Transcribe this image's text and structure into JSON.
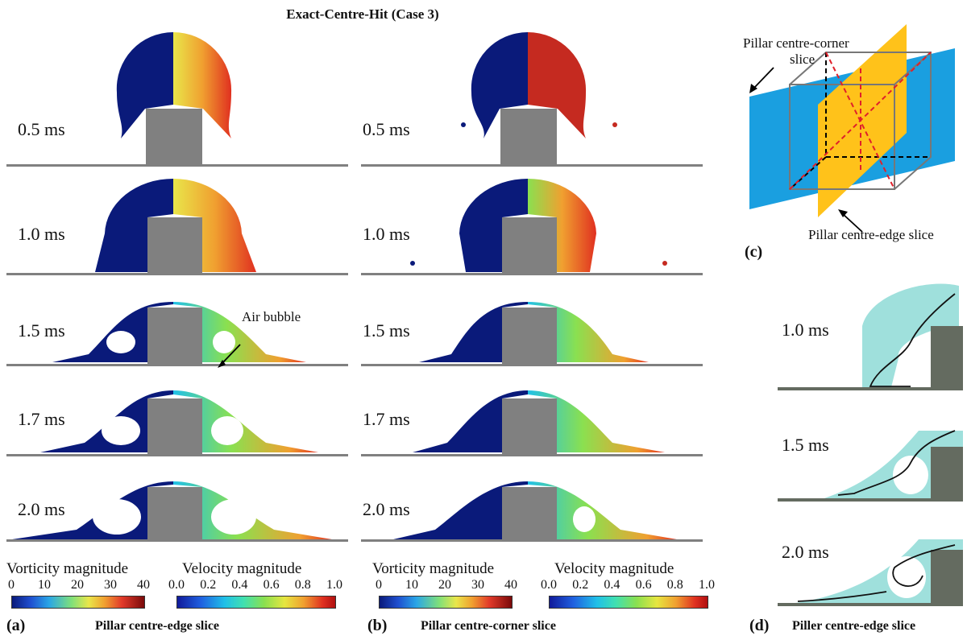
{
  "figure": {
    "title": "Exact-Centre-Hit (Case 3)",
    "panel_a": {
      "label": "(a)",
      "caption": "Pillar centre-edge slice",
      "time_labels": [
        "0.5 ms",
        "1.0 ms",
        "1.5 ms",
        "1.7 ms",
        "2.0 ms"
      ],
      "annotation": "Air bubble"
    },
    "panel_b": {
      "label": "(b)",
      "caption": "Pillar centre-corner slice",
      "time_labels": [
        "0.5 ms",
        "1.0 ms",
        "1.5 ms",
        "1.7 ms",
        "2.0 ms"
      ]
    },
    "panel_c": {
      "label": "(c)",
      "corner_slice_label_line1": "Pillar centre-corner",
      "corner_slice_label_line2": "slice",
      "edge_slice_label": "Pillar centre-edge slice"
    },
    "panel_d": {
      "label": "(d)",
      "caption": "Piller centre-edge slice",
      "time_labels": [
        "1.0 ms",
        "1.5 ms",
        "2.0 ms"
      ]
    },
    "legend_a": {
      "vorticity_title": "Vorticity magnitude",
      "vorticity_ticks": [
        "0",
        "10",
        "20",
        "30",
        "40"
      ],
      "velocity_title": "Velocity magnitude",
      "velocity_ticks": [
        "0.0",
        "0.2",
        "0.4",
        "0.6",
        "0.8",
        "1.0"
      ]
    },
    "legend_b": {
      "vorticity_title": "Vorticity magnitude",
      "vorticity_ticks": [
        "0",
        "10",
        "20",
        "30",
        "40"
      ],
      "velocity_title": "Velocity magnitude",
      "velocity_ticks": [
        "0.0",
        "0.2",
        "0.4",
        "0.6",
        "0.8",
        "1.0"
      ]
    },
    "colors": {
      "vorticity_low": "#0a1a7a",
      "velocity_high": "#e03020",
      "pillar": "#808080",
      "corner_slice": "#1a9fe0",
      "edge_slice": "#ffc21a",
      "streamline_fluid": "#9fe0dc",
      "pillar_dark": "#646b60"
    }
  }
}
